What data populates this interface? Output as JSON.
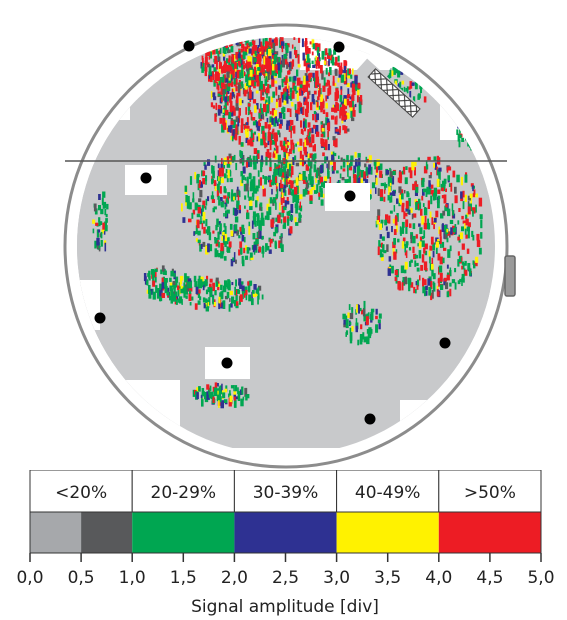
{
  "chart_data": {
    "type": "heatmap",
    "title": "",
    "xlabel": "Signal amplitude [div]",
    "colorbar": {
      "ticks": [
        "0,0",
        "0,5",
        "1,0",
        "1,5",
        "2,0",
        "2,5",
        "3,0",
        "3,5",
        "4,0",
        "4,5",
        "5,0"
      ],
      "range": [
        0.0,
        5.0
      ],
      "bands": [
        {
          "label": "<20%",
          "from": 0.0,
          "to": 1.0,
          "segments": [
            {
              "from": 0.0,
              "to": 0.5,
              "color": "#a6a8ab"
            },
            {
              "from": 0.5,
              "to": 1.0,
              "color": "#58595b"
            }
          ]
        },
        {
          "label": "20-29%",
          "from": 1.0,
          "to": 2.0,
          "color": "#00a651"
        },
        {
          "label": "30-39%",
          "from": 2.0,
          "to": 3.0,
          "color": "#2e3192"
        },
        {
          "label": "40-49%",
          "from": 3.0,
          "to": 4.0,
          "color": "#fff200"
        },
        {
          "label": ">50%",
          "from": 4.0,
          "to": 5.0,
          "color": "#ed1c24"
        }
      ]
    },
    "scan": {
      "shape": "circular disc",
      "background_color": "#c8c9cb",
      "rim_color": "#8c8c8c",
      "has_notch": true,
      "has_horizontal_seam": true,
      "marker_count": 10
    }
  }
}
